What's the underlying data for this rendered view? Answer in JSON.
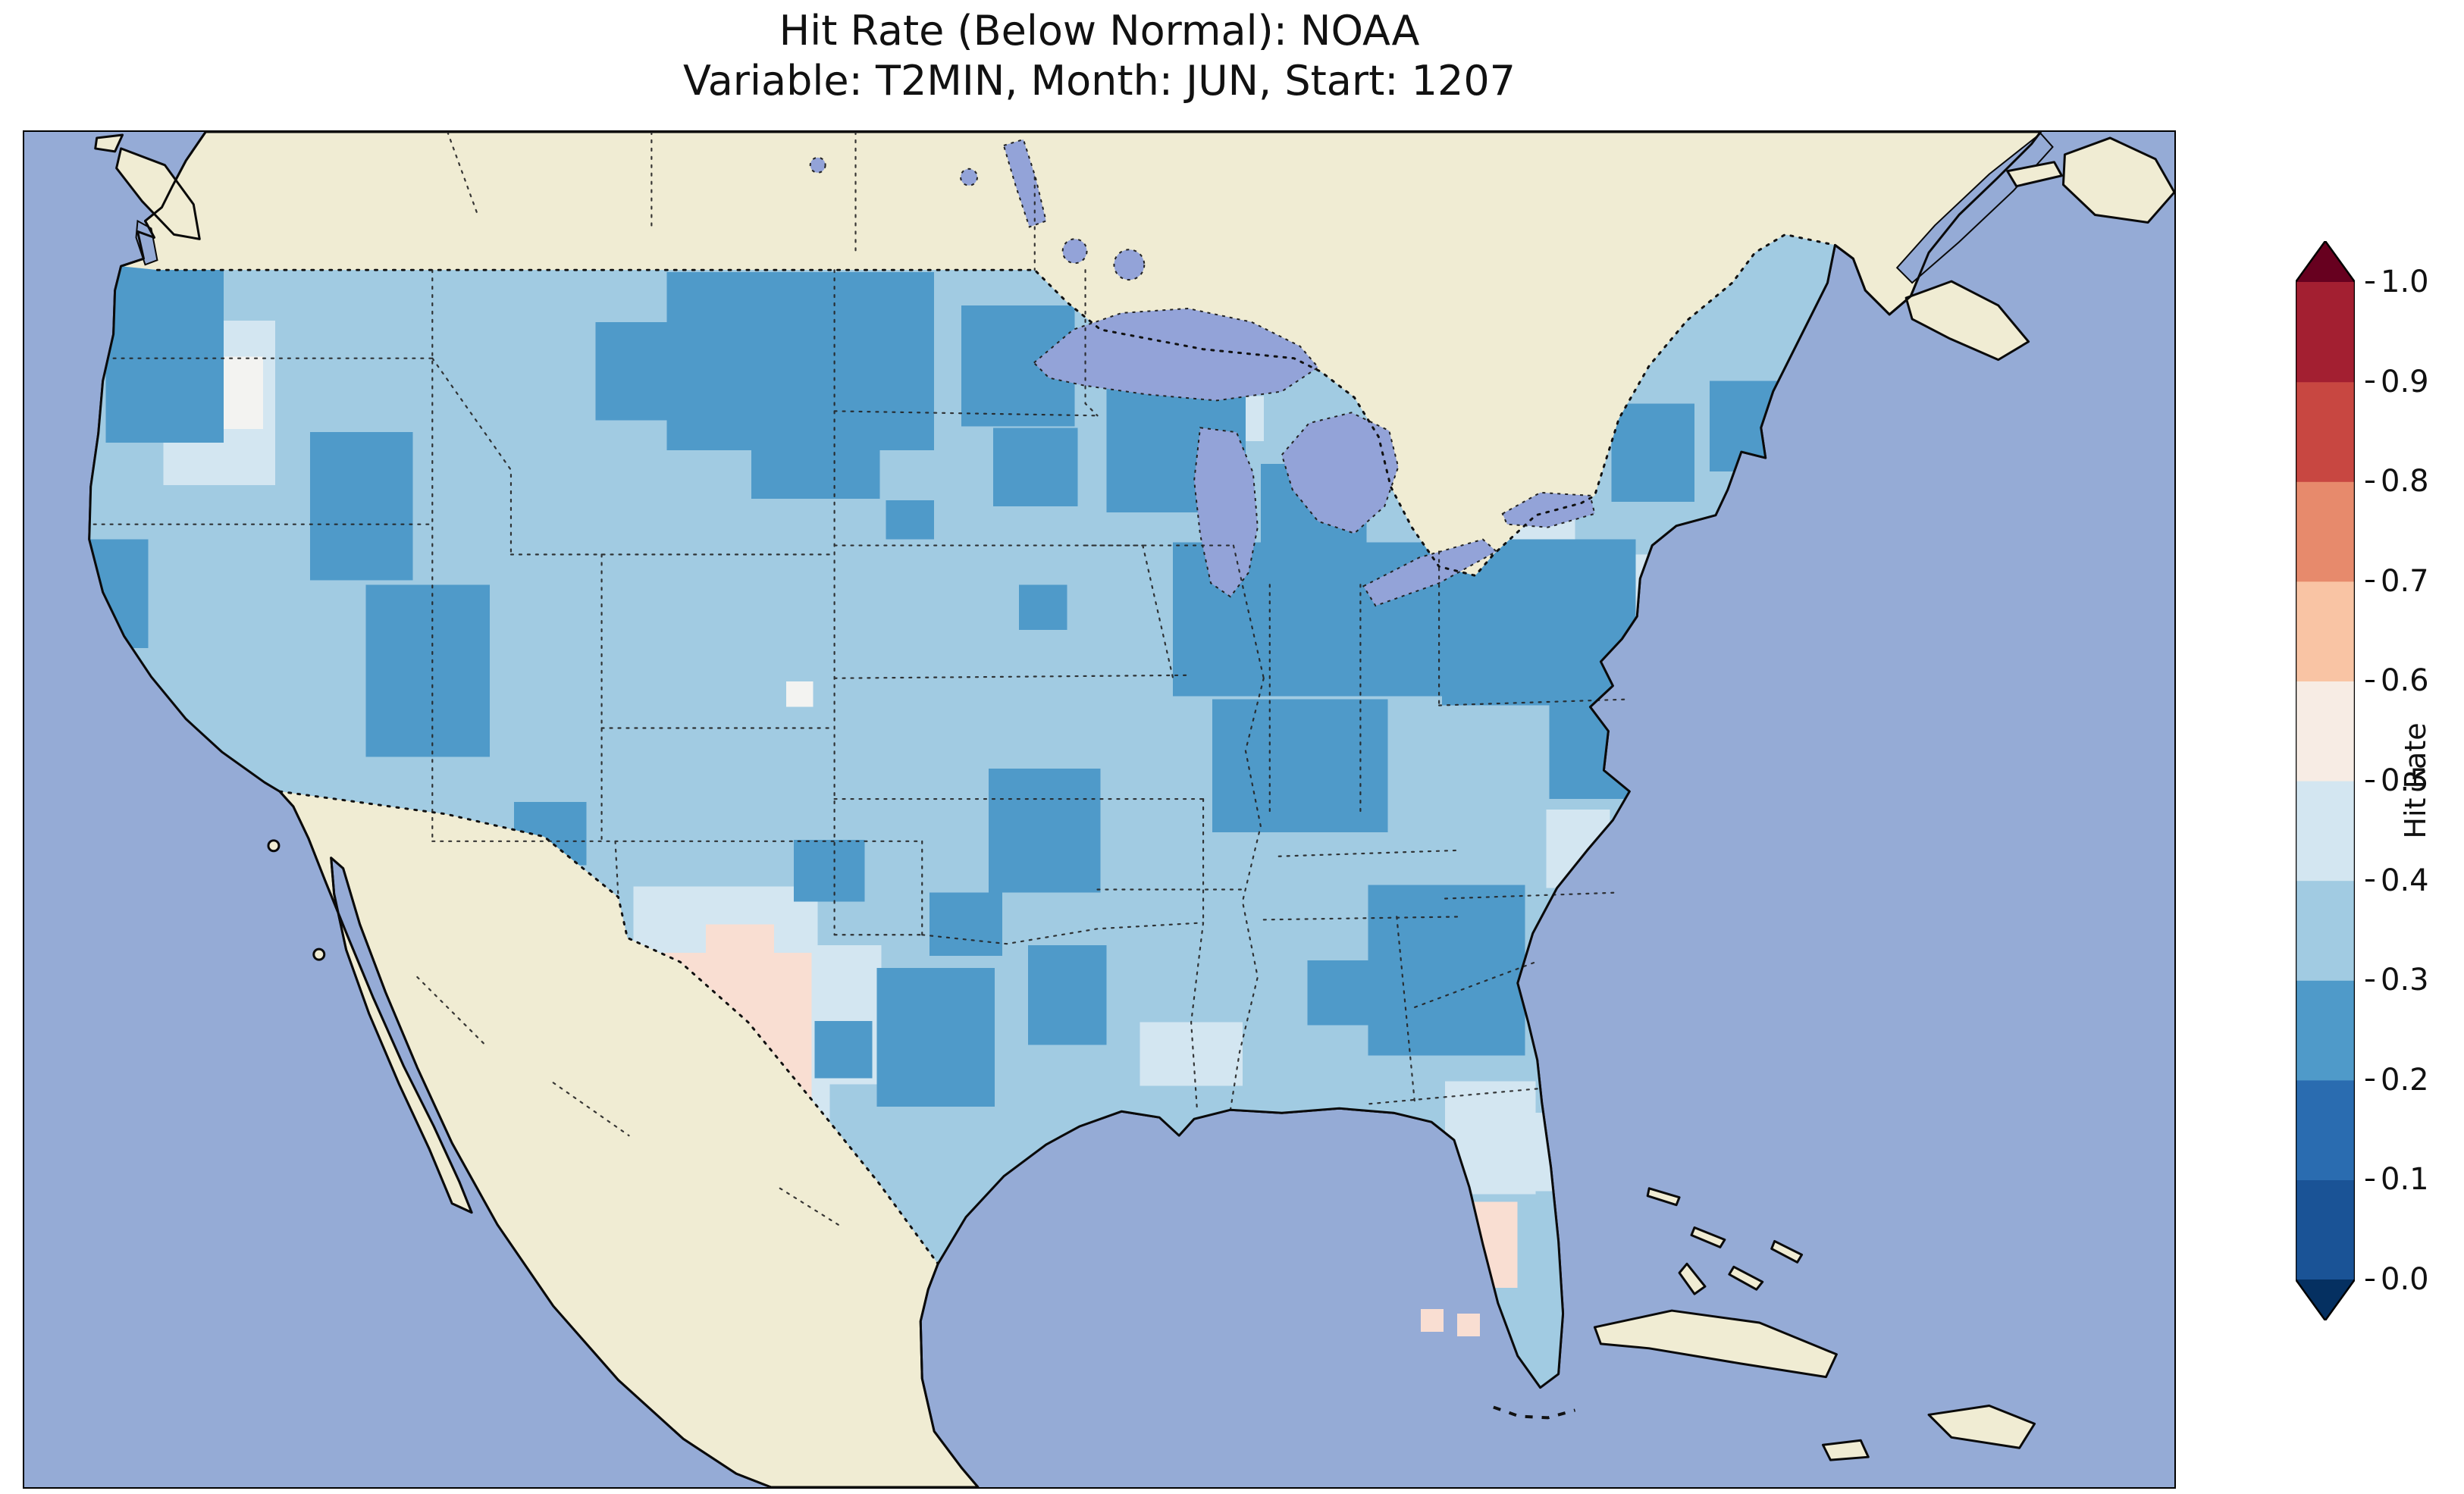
{
  "figure": {
    "title_line1": "Hit Rate (Below Normal): NOAA",
    "title_line2": "Variable: T2MIN, Month: JUN, Start: 1207"
  },
  "chart_data": {
    "type": "heatmap",
    "title": "Hit Rate (Below Normal): NOAA",
    "subtitle": "Variable: T2MIN, Month: JUN, Start: 1207",
    "variable": "T2MIN",
    "month": "JUN",
    "start": "1207",
    "dataset": "NOAA",
    "map_region": "Contiguous United States with surrounding Canada, Mexico, Pacific and Atlantic",
    "colorbar": {
      "label": "Hit Rate",
      "range": [
        0.0,
        1.0
      ],
      "ticks": [
        "0.0",
        "0.1",
        "0.2",
        "0.3",
        "0.4",
        "0.5",
        "0.6",
        "0.7",
        "0.8",
        "0.9",
        "1.0"
      ],
      "tick_values": [
        0.0,
        0.1,
        0.2,
        0.3,
        0.4,
        0.5,
        0.6,
        0.7,
        0.8,
        0.9,
        1.0
      ],
      "extend": "both",
      "bin_colors_bottom_to_top": [
        "#1a5396",
        "#2a6cb0",
        "#4f9ac9",
        "#a1cbe2",
        "#d3e6f1",
        "#f7ece4",
        "#f9c4a4",
        "#e78a6c",
        "#c84741",
        "#a31f31"
      ],
      "extend_colors": {
        "under": "#053061",
        "over": "#67001f"
      }
    },
    "values_summary": {
      "dominant_hit_rate_bin": [
        0.3,
        0.4
      ],
      "regions": [
        {
          "name": "Most of contiguous US (background)",
          "hit_rate": 0.35
        },
        {
          "name": "Western Washington / Puget Sound coast",
          "hit_rate": 0.25
        },
        {
          "name": "Northwest California coast",
          "hit_rate": 0.25
        },
        {
          "name": "Central Oregon",
          "hit_rate": 0.45
        },
        {
          "name": "Montana and northern Rockies",
          "hit_rate": 0.25
        },
        {
          "name": "Central Idaho",
          "hit_rate": 0.25
        },
        {
          "name": "Eastern Nevada / western Utah",
          "hit_rate": 0.25
        },
        {
          "name": "Central Utah cells",
          "hit_rate": 0.5
        },
        {
          "name": "Four Corners (CO/NM) spots",
          "hit_rate": 0.25
        },
        {
          "name": "North Dakota spot",
          "hit_rate": 0.25
        },
        {
          "name": "Minnesota",
          "hit_rate": 0.25
        },
        {
          "name": "Wisconsin / northern Illinois",
          "hit_rate": 0.25
        },
        {
          "name": "Lower Michigan",
          "hit_rate": 0.25
        },
        {
          "name": "Illinois-Indiana-Ohio belt",
          "hit_rate": 0.25
        },
        {
          "name": "Kentucky / Tennessee",
          "hit_rate": 0.25
        },
        {
          "name": "Missouri / northern Arkansas",
          "hit_rate": 0.25
        },
        {
          "name": "Pennsylvania / Appalachians",
          "hit_rate": 0.25
        },
        {
          "name": "Adirondacks / upstate New York",
          "hit_rate": 0.25
        },
        {
          "name": "Northern New England",
          "hit_rate": 0.25
        },
        {
          "name": "Coastal Virginia / eastern North Carolina",
          "hit_rate": 0.25
        },
        {
          "name": "Georgia / South Carolina",
          "hit_rate": 0.25
        },
        {
          "name": "Alabama spot",
          "hit_rate": 0.25
        },
        {
          "name": "Louisiana / Mississippi",
          "hit_rate": 0.25
        },
        {
          "name": "Southern Texas",
          "hit_rate": 0.25
        },
        {
          "name": "Oklahoma spots",
          "hit_rate": 0.25
        },
        {
          "name": "West Texas",
          "hit_rate": 0.55
        },
        {
          "name": "West Texas fringe",
          "hit_rate": 0.45
        },
        {
          "name": "Mid-Atlantic coast (NJ / Delmarva)",
          "hit_rate": 0.45
        },
        {
          "name": "Gulf coast (MS/AL)",
          "hit_rate": 0.45
        },
        {
          "name": "Central Florida",
          "hit_rate": 0.45
        },
        {
          "name": "South Florida",
          "hit_rate": 0.55
        },
        {
          "name": "Florida Keys cells",
          "hit_rate": 0.55
        }
      ],
      "no_data_areas": [
        "Canada",
        "Mexico",
        "oceans and lakes"
      ]
    }
  },
  "palette": {
    "bg": "#ffffff",
    "title": "#111111",
    "ocean": "#95abd6",
    "lake": "#93a3d8",
    "land": "#f0ecd3",
    "base": "#a1cbe2",
    "dark": "#4f9ac9",
    "light": "#d3e6f1",
    "white": "#f3f3f1",
    "pink": "#f9ded2",
    "coast": "#0a0a0a"
  }
}
